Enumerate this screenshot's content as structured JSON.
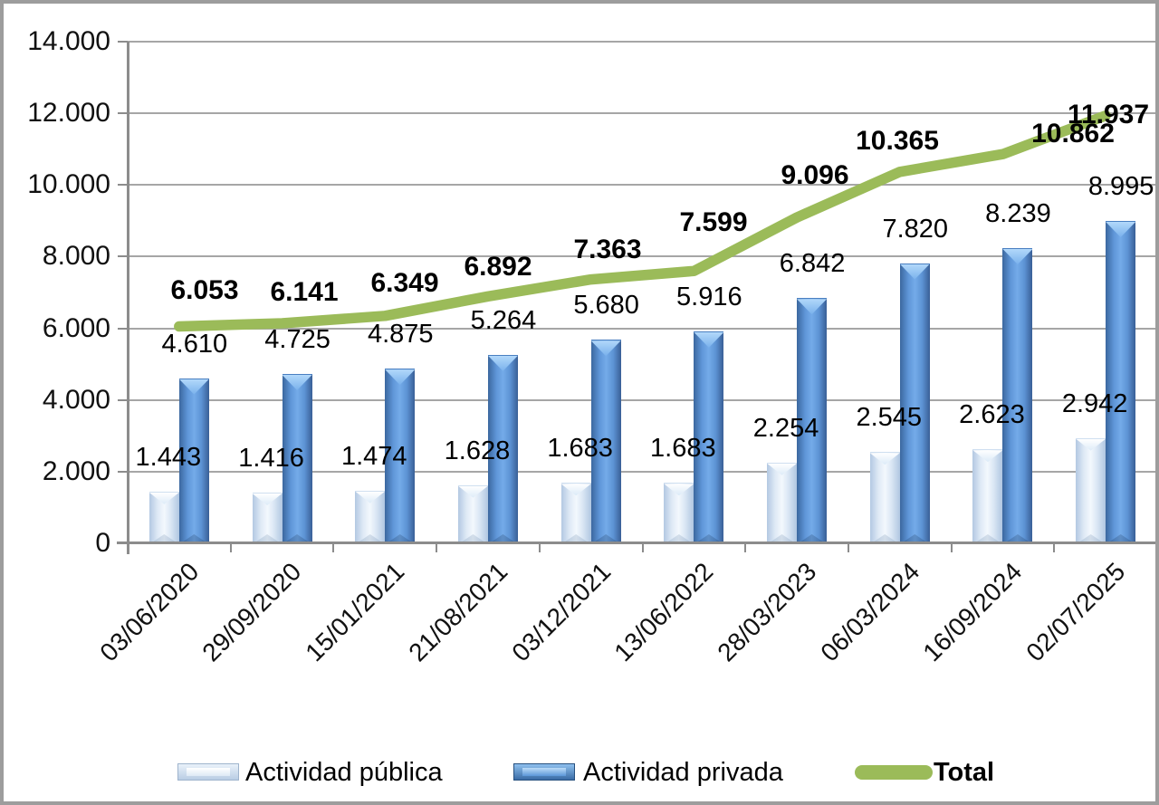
{
  "chart_data": {
    "type": "bar",
    "subtype": "combo-bar-line",
    "title": "",
    "xlabel": "",
    "ylabel": "",
    "categories": [
      "03/06/2020",
      "29/09/2020",
      "15/01/2021",
      "21/08/2021",
      "03/12/2021",
      "13/06/2022",
      "28/03/2023",
      "06/03/2024",
      "16/09/2024",
      "02/07/2025"
    ],
    "series": [
      {
        "name": "Actividad pública",
        "type": "bar",
        "color": "#dfeaf6",
        "values": [
          1443,
          1416,
          1474,
          1628,
          1683,
          1683,
          2254,
          2545,
          2623,
          2942
        ]
      },
      {
        "name": "Actividad privada",
        "type": "bar",
        "color": "#5e94d4",
        "values": [
          4610,
          4725,
          4875,
          5264,
          5680,
          5916,
          6842,
          7820,
          8239,
          8995
        ]
      },
      {
        "name": "Total",
        "type": "line",
        "color": "#9bbb59",
        "values": [
          6053,
          6141,
          6349,
          6892,
          7363,
          7599,
          9096,
          10365,
          10862,
          11937
        ]
      }
    ],
    "ylim": [
      0,
      14000
    ],
    "ytick_step": 2000,
    "ytick_labels": [
      "0",
      "2.000",
      "4.000",
      "6.000",
      "8.000",
      "10.000",
      "12.000",
      "14.000"
    ],
    "grid": "horizontal",
    "legend_position": "bottom",
    "number_format": "thousands-dot",
    "data_labels_visible": true
  },
  "legend": {
    "items": [
      {
        "label": "Actividad pública"
      },
      {
        "label": "Actividad privada"
      },
      {
        "label": "Total"
      }
    ]
  },
  "colors": {
    "background": "#ffffff",
    "outer_border": "#9d9d9d",
    "gridline": "#a6a6a6",
    "axis": "#8c8c8c",
    "bar_public_center": "#f3f8fd",
    "bar_public_edge": "#b3c8e2",
    "bar_private_center": "#74abe9",
    "bar_private_edge": "#3b679f",
    "total_line": "#9bbb59",
    "label_text": "#000000"
  }
}
